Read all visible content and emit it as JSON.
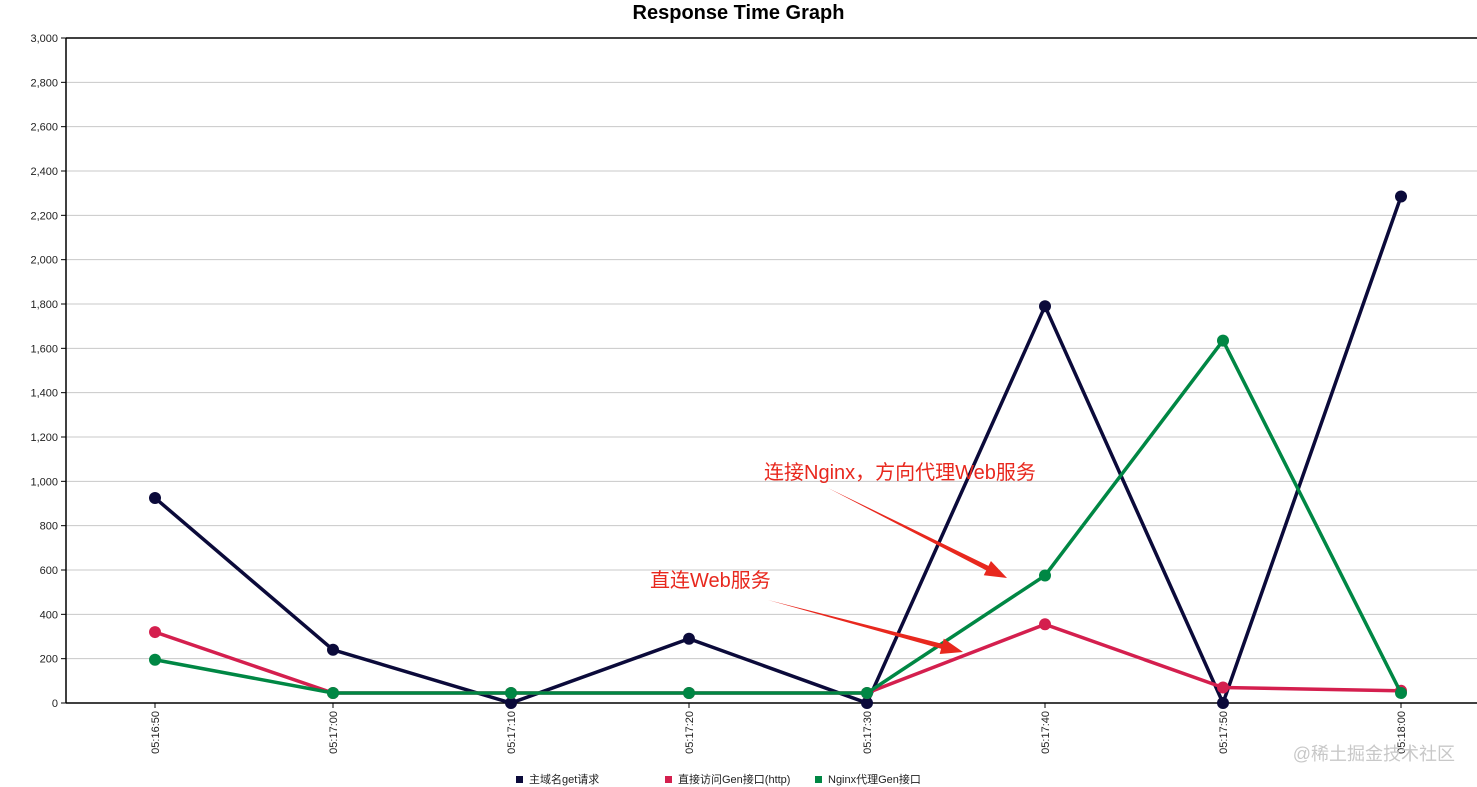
{
  "chart_data": {
    "type": "line",
    "title": "Response Time Graph",
    "x": [
      "05:16:50",
      "05:17:00",
      "05:17:10",
      "05:17:20",
      "05:17:30",
      "05:17:40",
      "05:17:50",
      "05:18:00"
    ],
    "y_ticks": [
      "0",
      "200",
      "400",
      "600",
      "800",
      "1,000",
      "1,200",
      "1,400",
      "1,600",
      "1,800",
      "2,000",
      "2,200",
      "2,400",
      "2,600",
      "2,800",
      "3,000"
    ],
    "ylim": [
      0,
      3000
    ],
    "grid": true,
    "legend_position": "bottom",
    "series": [
      {
        "name": "主域名get请求",
        "color": "#0b0a3a",
        "values": [
          925,
          240,
          0,
          290,
          0,
          1790,
          0,
          2285
        ]
      },
      {
        "name": "直接访问Gen接口(http)",
        "color": "#d41f4e",
        "values": [
          320,
          45,
          45,
          45,
          45,
          355,
          70,
          55
        ]
      },
      {
        "name": "Nginx代理Gen接口",
        "color": "#008744",
        "values": [
          195,
          45,
          45,
          45,
          45,
          575,
          1635,
          45
        ]
      }
    ],
    "annotations": [
      {
        "text": "连接Nginx，方向代理Web服务",
        "color": "#e8281e",
        "points_to": "05:17:40"
      },
      {
        "text": "直连Web服务",
        "color": "#e8281e",
        "points_to": "05:17:40"
      }
    ]
  },
  "watermark": "@稀土掘金技术社区"
}
